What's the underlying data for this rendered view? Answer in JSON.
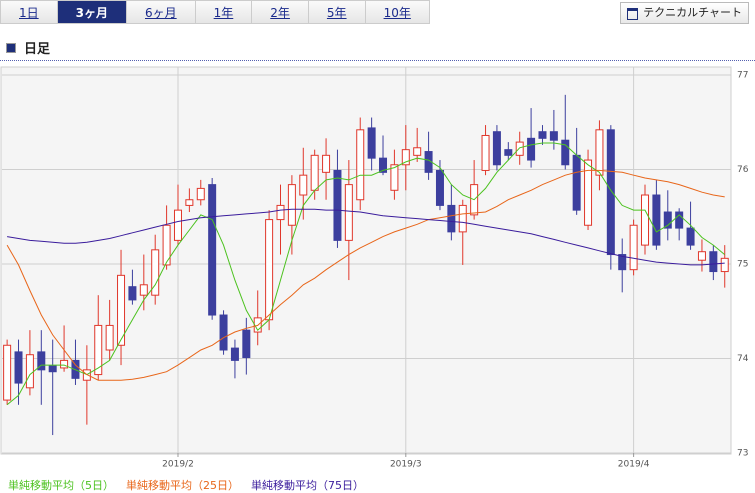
{
  "tabs": [
    "1日",
    "3ヶ月",
    "6ヶ月",
    "1年",
    "2年",
    "5年",
    "10年"
  ],
  "button": "テクニカルチャート",
  "section_title": "日足",
  "chart_data": {
    "type": "candlestick",
    "categories": [
      null,
      null,
      null,
      null,
      null,
      null,
      null,
      null,
      null,
      null,
      null,
      null,
      null,
      null,
      null,
      "2019/2",
      null,
      null,
      null,
      null,
      null,
      null,
      null,
      null,
      null,
      null,
      null,
      null,
      null,
      null,
      null,
      null,
      null,
      null,
      null,
      "2019/3",
      null,
      null,
      null,
      null,
      null,
      null,
      null,
      null,
      null,
      null,
      null,
      null,
      null,
      null,
      null,
      null,
      null,
      null,
      null,
      "2019/4",
      null,
      null,
      null,
      null,
      null,
      null,
      null,
      null
    ],
    "open": [
      73.56,
      74.07,
      73.69,
      74.07,
      73.92,
      73.9,
      73.98,
      73.77,
      73.83,
      74.09,
      74.14,
      74.76,
      74.67,
      74.67,
      74.99,
      75.25,
      75.62,
      75.68,
      75.84,
      74.46,
      74.11,
      74.3,
      74.28,
      74.41,
      75.47,
      75.41,
      75.73,
      75.78,
      75.97,
      75.99,
      75.25,
      75.68,
      76.44,
      76.12,
      75.78,
      76.05,
      76.15,
      76.19,
      75.99,
      75.62,
      75.34,
      75.52,
      75.99,
      76.4,
      76.21,
      76.15,
      76.33,
      76.4,
      76.4,
      76.31,
      76.15,
      75.41,
      75.94,
      76.42,
      75.1,
      74.94,
      75.2,
      75.73,
      75.55,
      75.55,
      75.38,
      75.04,
      75.13,
      74.92
    ],
    "high": [
      74.2,
      74.2,
      74.3,
      74.3,
      74.2,
      74.35,
      74.2,
      74.14,
      74.67,
      74.62,
      75.15,
      74.94,
      75.1,
      75.31,
      75.62,
      75.84,
      75.8,
      75.89,
      75.91,
      74.51,
      74.2,
      74.43,
      74.72,
      75.57,
      75.84,
      75.94,
      76.23,
      76.21,
      76.33,
      76.21,
      76.1,
      76.55,
      76.55,
      76.36,
      76.21,
      76.47,
      76.44,
      76.4,
      76.1,
      75.84,
      75.68,
      76.1,
      76.47,
      76.47,
      76.29,
      76.4,
      76.65,
      76.47,
      76.63,
      76.79,
      76.44,
      76.21,
      76.52,
      76.47,
      75.27,
      75.47,
      75.84,
      75.89,
      75.78,
      75.59,
      75.66,
      75.26,
      75.2,
      75.2
    ],
    "low": [
      73.51,
      73.51,
      73.61,
      73.51,
      73.19,
      73.86,
      73.72,
      73.3,
      73.77,
      73.98,
      73.93,
      74.57,
      74.51,
      74.57,
      74.94,
      75.2,
      75.55,
      75.62,
      74.41,
      74.04,
      73.79,
      73.83,
      74.14,
      74.3,
      75.1,
      75.1,
      75.47,
      75.68,
      75.68,
      75.17,
      74.83,
      75.57,
      75.99,
      75.94,
      75.68,
      75.78,
      76.08,
      75.89,
      75.57,
      75.25,
      74.99,
      75.47,
      75.94,
      75.99,
      76.1,
      76.05,
      76.02,
      76.26,
      76.21,
      76.0,
      75.52,
      75.36,
      75.78,
      74.94,
      74.7,
      74.88,
      75.1,
      75.15,
      75.25,
      75.25,
      75.15,
      74.92,
      74.83,
      74.75
    ],
    "close": [
      74.14,
      73.74,
      74.04,
      73.88,
      73.86,
      73.98,
      73.79,
      73.88,
      74.35,
      74.35,
      74.88,
      74.62,
      74.78,
      75.15,
      75.41,
      75.57,
      75.68,
      75.8,
      74.46,
      74.09,
      73.98,
      74.01,
      74.43,
      75.47,
      75.62,
      75.84,
      75.94,
      76.15,
      76.15,
      75.25,
      75.84,
      76.42,
      76.12,
      75.97,
      76.05,
      76.21,
      76.23,
      75.97,
      75.62,
      75.34,
      75.62,
      75.84,
      76.36,
      76.05,
      76.15,
      76.29,
      76.1,
      76.33,
      76.31,
      76.05,
      75.57,
      76.1,
      76.42,
      75.1,
      74.94,
      75.41,
      75.73,
      75.2,
      75.38,
      75.38,
      75.2,
      75.13,
      74.92,
      75.06
    ],
    "up_color": "#e0372b",
    "down_color": "#3c3f9e",
    "ma_series": [
      {
        "name": "単純移動平均（5日）",
        "color": "#4cc21f",
        "values": [
          73.51,
          73.61,
          73.83,
          73.93,
          73.93,
          73.93,
          73.88,
          73.83,
          73.9,
          73.98,
          74.2,
          74.41,
          74.62,
          74.78,
          75.02,
          75.2,
          75.36,
          75.52,
          75.47,
          75.2,
          74.83,
          74.51,
          74.3,
          74.41,
          74.83,
          75.25,
          75.62,
          75.78,
          75.89,
          75.91,
          75.89,
          75.94,
          75.94,
          75.99,
          76.02,
          76.08,
          76.12,
          76.1,
          76.02,
          75.84,
          75.73,
          75.68,
          75.8,
          75.97,
          76.1,
          76.23,
          76.26,
          76.28,
          76.28,
          76.26,
          76.15,
          76.05,
          75.97,
          75.78,
          75.62,
          75.57,
          75.57,
          75.34,
          75.41,
          75.52,
          75.41,
          75.28,
          75.2,
          75.1
        ]
      },
      {
        "name": "単純移動平均（25日）",
        "color": "#e8661a",
        "values": [
          75.2,
          74.99,
          74.72,
          74.46,
          74.25,
          74.09,
          73.93,
          73.83,
          73.77,
          73.77,
          73.77,
          73.78,
          73.8,
          73.83,
          73.86,
          73.93,
          74.01,
          74.09,
          74.14,
          74.22,
          74.28,
          74.32,
          74.35,
          74.46,
          74.57,
          74.67,
          74.78,
          74.85,
          74.94,
          75.02,
          75.1,
          75.17,
          75.23,
          75.29,
          75.34,
          75.38,
          75.42,
          75.47,
          75.49,
          75.51,
          75.53,
          75.54,
          75.55,
          75.61,
          75.68,
          75.73,
          75.78,
          75.84,
          75.89,
          75.94,
          75.97,
          75.99,
          75.99,
          75.98,
          75.97,
          75.94,
          75.91,
          75.89,
          75.87,
          75.84,
          75.8,
          75.76,
          75.73,
          75.71
        ]
      },
      {
        "name": "単純移動平均（75日）",
        "color": "#3a1c9c",
        "values": [
          75.29,
          75.27,
          75.25,
          75.24,
          75.23,
          75.22,
          75.22,
          75.23,
          75.25,
          75.27,
          75.3,
          75.33,
          75.36,
          75.39,
          75.42,
          75.45,
          75.47,
          75.49,
          75.5,
          75.51,
          75.52,
          75.53,
          75.54,
          75.55,
          75.57,
          75.58,
          75.58,
          75.58,
          75.57,
          75.57,
          75.56,
          75.55,
          75.53,
          75.51,
          75.5,
          75.49,
          75.48,
          75.47,
          75.46,
          75.45,
          75.44,
          75.42,
          75.4,
          75.38,
          75.36,
          75.34,
          75.32,
          75.29,
          75.26,
          75.23,
          75.2,
          75.17,
          75.14,
          75.11,
          75.08,
          75.06,
          75.04,
          75.02,
          75.01,
          75.0,
          74.99,
          74.99,
          75.0,
          75.01
        ]
      }
    ],
    "ylim": [
      73,
      77
    ],
    "yticks": [
      73,
      74,
      75,
      76,
      77
    ],
    "grid": true
  }
}
